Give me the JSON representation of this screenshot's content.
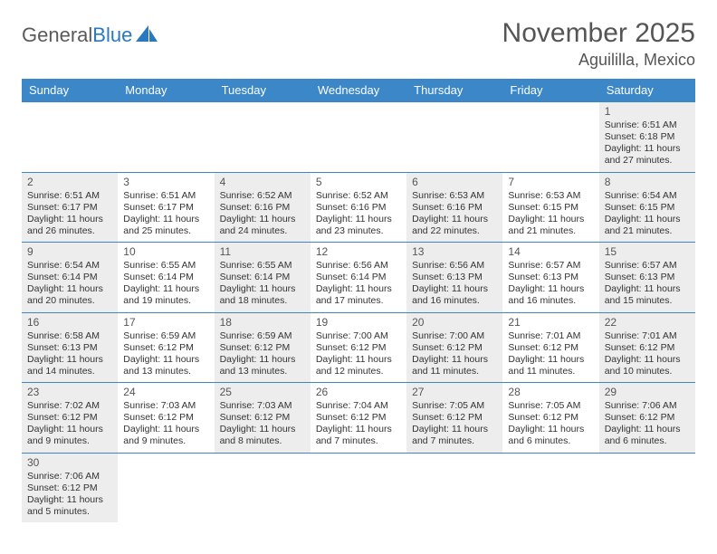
{
  "brand": {
    "general": "General",
    "blue": "Blue"
  },
  "title": "November 2025",
  "location": "Aguililla, Mexico",
  "headers": [
    "Sunday",
    "Monday",
    "Tuesday",
    "Wednesday",
    "Thursday",
    "Friday",
    "Saturday"
  ],
  "colors": {
    "header_bg": "#3b87c8",
    "header_fg": "#ffffff",
    "cell_alt_bg": "#ededed",
    "cell_bg": "#ffffff",
    "border": "#3b87c8",
    "title_color": "#555555",
    "logo_gray": "#5a5a5a",
    "logo_blue": "#2a78c0"
  },
  "typography": {
    "title_fontsize": 30,
    "location_fontsize": 18,
    "header_fontsize": 13,
    "cell_fontsize": 10.5,
    "daynum_fontsize": 12
  },
  "weeks": [
    [
      null,
      null,
      null,
      null,
      null,
      null,
      {
        "n": "1",
        "sunrise": "6:51 AM",
        "sunset": "6:18 PM",
        "dl1": "Daylight: 11 hours",
        "dl2": "and 27 minutes."
      }
    ],
    [
      {
        "n": "2",
        "sunrise": "6:51 AM",
        "sunset": "6:17 PM",
        "dl1": "Daylight: 11 hours",
        "dl2": "and 26 minutes."
      },
      {
        "n": "3",
        "sunrise": "6:51 AM",
        "sunset": "6:17 PM",
        "dl1": "Daylight: 11 hours",
        "dl2": "and 25 minutes."
      },
      {
        "n": "4",
        "sunrise": "6:52 AM",
        "sunset": "6:16 PM",
        "dl1": "Daylight: 11 hours",
        "dl2": "and 24 minutes."
      },
      {
        "n": "5",
        "sunrise": "6:52 AM",
        "sunset": "6:16 PM",
        "dl1": "Daylight: 11 hours",
        "dl2": "and 23 minutes."
      },
      {
        "n": "6",
        "sunrise": "6:53 AM",
        "sunset": "6:16 PM",
        "dl1": "Daylight: 11 hours",
        "dl2": "and 22 minutes."
      },
      {
        "n": "7",
        "sunrise": "6:53 AM",
        "sunset": "6:15 PM",
        "dl1": "Daylight: 11 hours",
        "dl2": "and 21 minutes."
      },
      {
        "n": "8",
        "sunrise": "6:54 AM",
        "sunset": "6:15 PM",
        "dl1": "Daylight: 11 hours",
        "dl2": "and 21 minutes."
      }
    ],
    [
      {
        "n": "9",
        "sunrise": "6:54 AM",
        "sunset": "6:14 PM",
        "dl1": "Daylight: 11 hours",
        "dl2": "and 20 minutes."
      },
      {
        "n": "10",
        "sunrise": "6:55 AM",
        "sunset": "6:14 PM",
        "dl1": "Daylight: 11 hours",
        "dl2": "and 19 minutes."
      },
      {
        "n": "11",
        "sunrise": "6:55 AM",
        "sunset": "6:14 PM",
        "dl1": "Daylight: 11 hours",
        "dl2": "and 18 minutes."
      },
      {
        "n": "12",
        "sunrise": "6:56 AM",
        "sunset": "6:14 PM",
        "dl1": "Daylight: 11 hours",
        "dl2": "and 17 minutes."
      },
      {
        "n": "13",
        "sunrise": "6:56 AM",
        "sunset": "6:13 PM",
        "dl1": "Daylight: 11 hours",
        "dl2": "and 16 minutes."
      },
      {
        "n": "14",
        "sunrise": "6:57 AM",
        "sunset": "6:13 PM",
        "dl1": "Daylight: 11 hours",
        "dl2": "and 16 minutes."
      },
      {
        "n": "15",
        "sunrise": "6:57 AM",
        "sunset": "6:13 PM",
        "dl1": "Daylight: 11 hours",
        "dl2": "and 15 minutes."
      }
    ],
    [
      {
        "n": "16",
        "sunrise": "6:58 AM",
        "sunset": "6:13 PM",
        "dl1": "Daylight: 11 hours",
        "dl2": "and 14 minutes."
      },
      {
        "n": "17",
        "sunrise": "6:59 AM",
        "sunset": "6:12 PM",
        "dl1": "Daylight: 11 hours",
        "dl2": "and 13 minutes."
      },
      {
        "n": "18",
        "sunrise": "6:59 AM",
        "sunset": "6:12 PM",
        "dl1": "Daylight: 11 hours",
        "dl2": "and 13 minutes."
      },
      {
        "n": "19",
        "sunrise": "7:00 AM",
        "sunset": "6:12 PM",
        "dl1": "Daylight: 11 hours",
        "dl2": "and 12 minutes."
      },
      {
        "n": "20",
        "sunrise": "7:00 AM",
        "sunset": "6:12 PM",
        "dl1": "Daylight: 11 hours",
        "dl2": "and 11 minutes."
      },
      {
        "n": "21",
        "sunrise": "7:01 AM",
        "sunset": "6:12 PM",
        "dl1": "Daylight: 11 hours",
        "dl2": "and 11 minutes."
      },
      {
        "n": "22",
        "sunrise": "7:01 AM",
        "sunset": "6:12 PM",
        "dl1": "Daylight: 11 hours",
        "dl2": "and 10 minutes."
      }
    ],
    [
      {
        "n": "23",
        "sunrise": "7:02 AM",
        "sunset": "6:12 PM",
        "dl1": "Daylight: 11 hours",
        "dl2": "and 9 minutes."
      },
      {
        "n": "24",
        "sunrise": "7:03 AM",
        "sunset": "6:12 PM",
        "dl1": "Daylight: 11 hours",
        "dl2": "and 9 minutes."
      },
      {
        "n": "25",
        "sunrise": "7:03 AM",
        "sunset": "6:12 PM",
        "dl1": "Daylight: 11 hours",
        "dl2": "and 8 minutes."
      },
      {
        "n": "26",
        "sunrise": "7:04 AM",
        "sunset": "6:12 PM",
        "dl1": "Daylight: 11 hours",
        "dl2": "and 7 minutes."
      },
      {
        "n": "27",
        "sunrise": "7:05 AM",
        "sunset": "6:12 PM",
        "dl1": "Daylight: 11 hours",
        "dl2": "and 7 minutes."
      },
      {
        "n": "28",
        "sunrise": "7:05 AM",
        "sunset": "6:12 PM",
        "dl1": "Daylight: 11 hours",
        "dl2": "and 6 minutes."
      },
      {
        "n": "29",
        "sunrise": "7:06 AM",
        "sunset": "6:12 PM",
        "dl1": "Daylight: 11 hours",
        "dl2": "and 6 minutes."
      }
    ],
    [
      {
        "n": "30",
        "sunrise": "7:06 AM",
        "sunset": "6:12 PM",
        "dl1": "Daylight: 11 hours",
        "dl2": "and 5 minutes."
      },
      null,
      null,
      null,
      null,
      null,
      null
    ]
  ],
  "labels": {
    "sunrise_prefix": "Sunrise: ",
    "sunset_prefix": "Sunset: "
  }
}
